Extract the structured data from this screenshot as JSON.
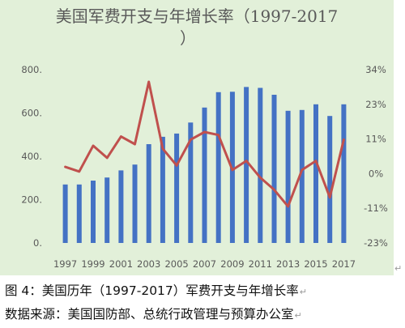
{
  "chart_data": {
    "type": "bar+line",
    "title": "美国军费开支与年增长率（1997-2017）",
    "title_lines": [
      "美国军费开支与年增长率（1997-2017",
      "）"
    ],
    "x": [
      1997,
      1998,
      1999,
      2000,
      2001,
      2002,
      2003,
      2004,
      2005,
      2006,
      2007,
      2008,
      2009,
      2010,
      2011,
      2012,
      2013,
      2014,
      2015,
      2016,
      2017
    ],
    "x_tick_labels": [
      "1997",
      "1999",
      "2001",
      "2003",
      "2005",
      "2007",
      "2009",
      "2011",
      "2013",
      "2015",
      "2017"
    ],
    "series": [
      {
        "type": "bar",
        "axis": "left",
        "color": "#4472c4",
        "values": [
          270,
          270,
          288,
          302,
          335,
          362,
          456,
          490,
          505,
          556,
          625,
          696,
          698,
          720,
          716,
          684,
          610,
          614,
          640,
          586,
          640
        ]
      },
      {
        "type": "line",
        "axis": "right",
        "color": "#c0504d",
        "values": [
          2,
          0.5,
          9,
          5,
          12,
          9.5,
          30,
          8,
          2.5,
          11,
          13.5,
          12.5,
          1,
          4,
          -1.5,
          -5.5,
          -11,
          1,
          4,
          -8,
          11
        ]
      }
    ],
    "y_left": {
      "range": [
        0,
        800
      ],
      "tick_labels": [
        "0.",
        "200.",
        "400.",
        "600.",
        "800."
      ]
    },
    "y_right": {
      "range": [
        -23,
        34
      ],
      "tick_labels": [
        "-23%",
        "-11%",
        "0%",
        "11%",
        "23%",
        "34%"
      ]
    },
    "grid": false
  },
  "captions": {
    "figure": "图 4：美国历年（1997-2017）军费开支与年增长率",
    "source": "数据来源：美国国防部、总统行政管理与预算办公室"
  },
  "colors": {
    "panel": "#e2f0d9",
    "bar": "#4472c4",
    "line": "#c0504d",
    "text": "#595959"
  }
}
